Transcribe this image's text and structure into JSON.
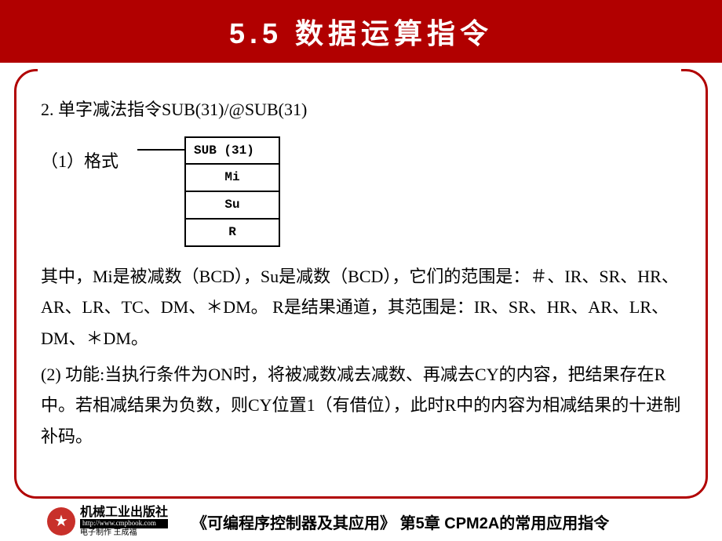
{
  "title": "5.5   数据运算指令",
  "section": {
    "heading": "2.  单字减法指令SUB(31)/@SUB(31)",
    "format_label": "（1）格式",
    "diagram": {
      "cells": [
        "SUB (31)",
        "Mi",
        "Su",
        "R"
      ]
    },
    "para1": "其中，Mi是被减数（BCD），Su是减数（BCD），它们的范围是：＃、IR、SR、HR、AR、LR、TC、DM、＊DM。 R是结果通道，其范围是：IR、SR、HR、AR、LR、DM、＊DM。",
    "para2": "(2) 功能:当执行条件为ON时，将被减数减去减数、再减去CY的内容，把结果存在R中。若相减结果为负数，则CY位置1（有借位），此时R中的内容为相减结果的十进制补码。"
  },
  "footer": {
    "publisher": "机械工业出版社",
    "url": "http://www.cmpbook.com",
    "credit": "电子制作  王成福",
    "book": "《可编程序控制器及其应用》    第5章  CPM2A的常用应用指令"
  },
  "colors": {
    "header_bg": "#b10000",
    "header_text": "#ffffff",
    "body_text": "#010101",
    "border": "#b10000"
  }
}
